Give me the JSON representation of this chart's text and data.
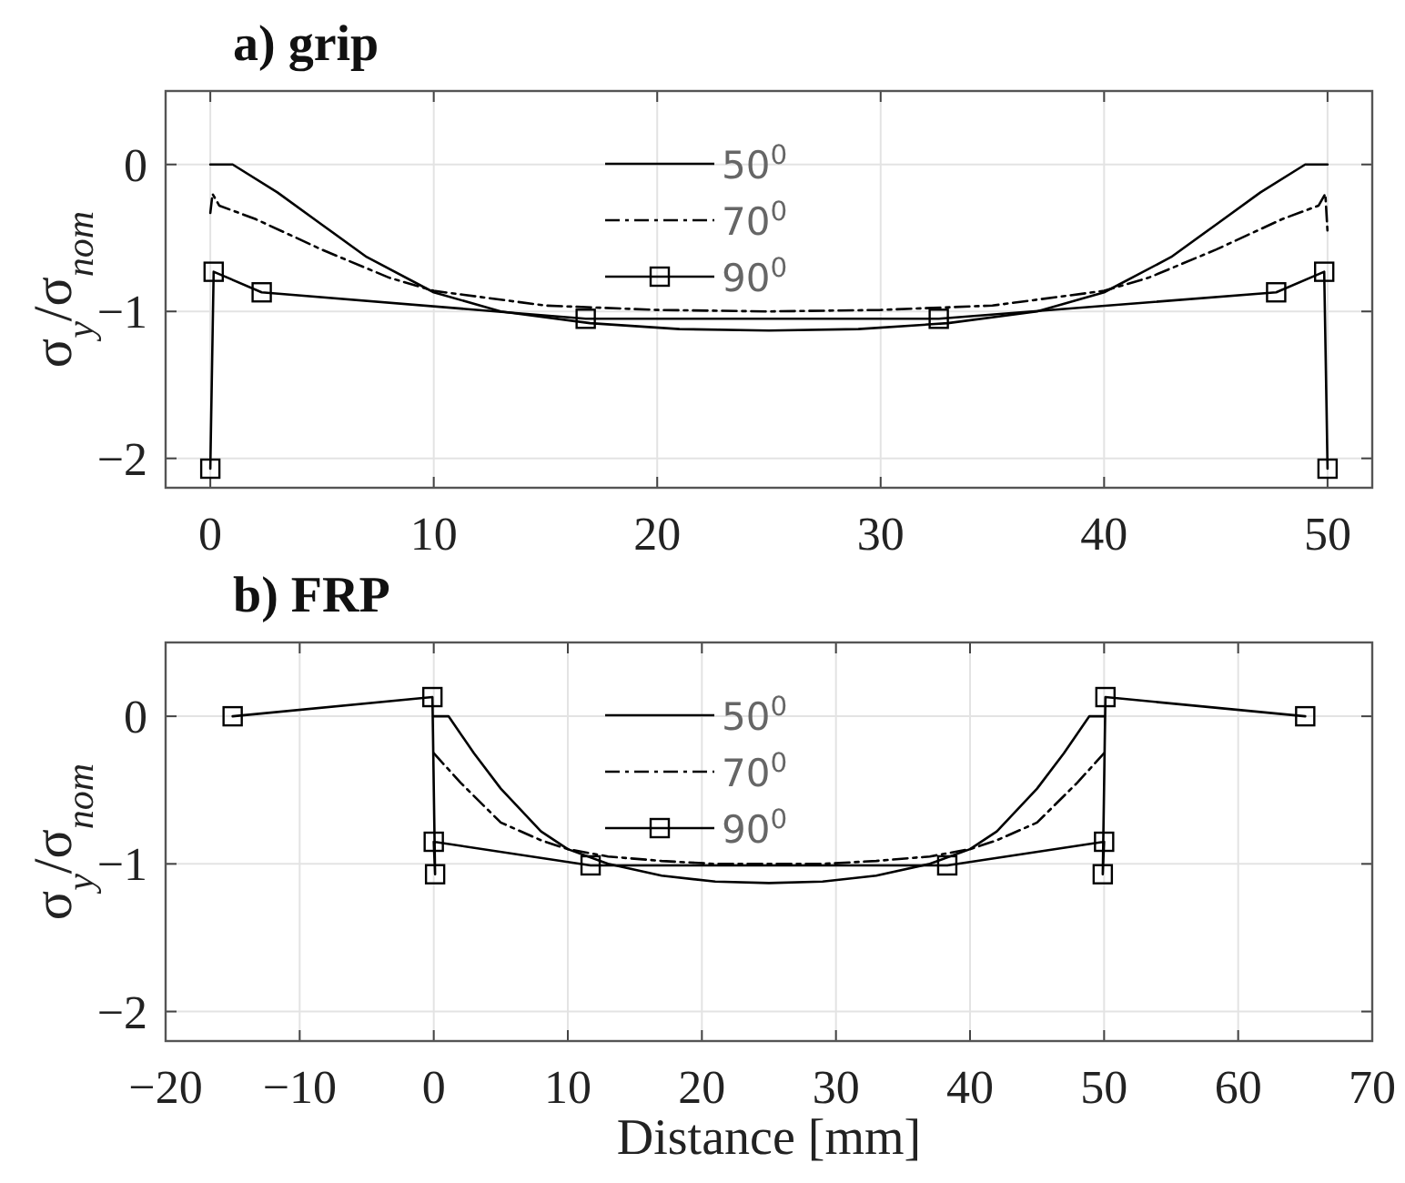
{
  "chart_data": [
    {
      "type": "line",
      "title": "a) grip",
      "ylabel": "σ$_{y}$/σ$_{nom}$",
      "xlim": [
        -2,
        52
      ],
      "ylim": [
        -2.2,
        0.5
      ],
      "xticks": [
        0,
        10,
        20,
        30,
        40,
        50
      ],
      "yticks": [
        -2,
        -1,
        0
      ],
      "grid": true,
      "legend": "top",
      "series": [
        {
          "name": "50$^{0}$",
          "color": "#000000",
          "line_style": "solid",
          "x": [
            0,
            1,
            3,
            5,
            7,
            10,
            13,
            17,
            21,
            25,
            29,
            33,
            37,
            40,
            43,
            45,
            47,
            49,
            50
          ],
          "values": [
            0,
            0,
            -0.19,
            -0.41,
            -0.63,
            -0.87,
            -1.0,
            -1.08,
            -1.12,
            -1.13,
            -1.12,
            -1.08,
            -1.0,
            -0.87,
            -0.63,
            -0.41,
            -0.19,
            0,
            0
          ]
        },
        {
          "name": "70$^{0}$",
          "color": "#000000",
          "line_style": "dashdot",
          "x": [
            0,
            0.1,
            0.4,
            2,
            5,
            8,
            10,
            15,
            20,
            25,
            30,
            35,
            40,
            42,
            45,
            48,
            49.6,
            49.9,
            50
          ],
          "values": [
            -0.33,
            -0.2,
            -0.28,
            -0.37,
            -0.58,
            -0.77,
            -0.86,
            -0.96,
            -0.99,
            -1.0,
            -0.99,
            -0.96,
            -0.86,
            -0.77,
            -0.58,
            -0.37,
            -0.28,
            -0.2,
            -0.46
          ]
        },
        {
          "name": "90$^{0}$",
          "color": "#000000",
          "line_style": "solid",
          "marker": "square",
          "x": [
            0,
            0.15,
            2.3,
            16.8,
            32.6,
            47.7,
            49.85,
            50
          ],
          "values": [
            -2.07,
            -0.73,
            -0.87,
            -1.05,
            -1.05,
            -0.87,
            -0.73,
            -2.07
          ]
        }
      ]
    },
    {
      "type": "line",
      "title": "b) FRP",
      "xlabel": "Distance [mm]",
      "ylabel": "σ$_{y}$/σ$_{nom}$",
      "xlim": [
        -20,
        70
      ],
      "ylim": [
        -2.2,
        0.5
      ],
      "xticks": [
        -20,
        -10,
        0,
        10,
        20,
        30,
        40,
        50,
        60,
        70
      ],
      "yticks": [
        -2,
        -1,
        0
      ],
      "grid": true,
      "legend": "top",
      "series": [
        {
          "name": "50$^{0}$",
          "color": "#000000",
          "line_style": "solid",
          "x": [
            0,
            1.1,
            3,
            5,
            8,
            10,
            13,
            17,
            21,
            25,
            29,
            33,
            37,
            40,
            42,
            45,
            47,
            48.9,
            50
          ],
          "values": [
            0,
            0,
            -0.25,
            -0.49,
            -0.78,
            -0.9,
            -1.0,
            -1.08,
            -1.12,
            -1.13,
            -1.12,
            -1.08,
            -1.0,
            -0.9,
            -0.78,
            -0.49,
            -0.25,
            0,
            0
          ]
        },
        {
          "name": "70$^{0}$",
          "color": "#000000",
          "line_style": "dashdot",
          "x": [
            0,
            2,
            5,
            8,
            10,
            13,
            17,
            21,
            25,
            29,
            33,
            37,
            40,
            42,
            45,
            48,
            50
          ],
          "values": [
            -0.25,
            -0.45,
            -0.72,
            -0.84,
            -0.9,
            -0.95,
            -0.98,
            -1.0,
            -1.0,
            -1.0,
            -0.98,
            -0.95,
            -0.9,
            -0.84,
            -0.72,
            -0.45,
            -0.25
          ]
        },
        {
          "name": "90$^{0}$",
          "color": "#000000",
          "line_style": "solid",
          "marker": "square",
          "x": [
            -15,
            -0.1,
            0.1,
            0,
            11.7,
            38.3,
            50,
            49.9,
            50.1,
            65
          ],
          "values": [
            0,
            0.13,
            -1.07,
            -0.85,
            -1.01,
            -1.01,
            -0.85,
            -1.07,
            0.13,
            0
          ]
        }
      ]
    }
  ]
}
